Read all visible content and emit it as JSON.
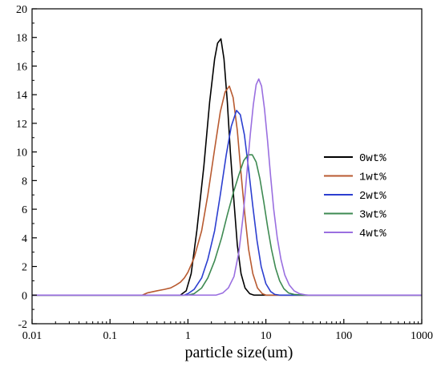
{
  "chart_data": {
    "type": "line",
    "title": "",
    "xlabel": "particle size(um)",
    "ylabel": "",
    "xscale": "log",
    "xlim": [
      0.01,
      1000
    ],
    "ylim": [
      -2,
      20
    ],
    "xticks": [
      {
        "value": 0.01,
        "label": "0.01"
      },
      {
        "value": 0.1,
        "label": "0.1"
      },
      {
        "value": 1,
        "label": "1"
      },
      {
        "value": 10,
        "label": "10"
      },
      {
        "value": 100,
        "label": "100"
      },
      {
        "value": 1000,
        "label": "1000"
      }
    ],
    "yticks": [
      {
        "value": -2,
        "label": "-2"
      },
      {
        "value": 0,
        "label": "0"
      },
      {
        "value": 2,
        "label": "2"
      },
      {
        "value": 4,
        "label": "4"
      },
      {
        "value": 6,
        "label": "6"
      },
      {
        "value": 8,
        "label": "8"
      },
      {
        "value": 10,
        "label": "10"
      },
      {
        "value": 12,
        "label": "12"
      },
      {
        "value": 14,
        "label": "14"
      },
      {
        "value": 16,
        "label": "16"
      },
      {
        "value": 18,
        "label": "18"
      },
      {
        "value": 20,
        "label": "20"
      }
    ],
    "grid": false,
    "legend_position": "right",
    "series": [
      {
        "name": "0wt%",
        "color": "#000000",
        "points": [
          [
            0.01,
            0
          ],
          [
            0.8,
            0
          ],
          [
            0.95,
            0.3
          ],
          [
            1.1,
            1.5
          ],
          [
            1.3,
            4.5
          ],
          [
            1.6,
            9
          ],
          [
            1.9,
            13.5
          ],
          [
            2.2,
            16.5
          ],
          [
            2.4,
            17.6
          ],
          [
            2.65,
            17.9
          ],
          [
            2.9,
            16.5
          ],
          [
            3.2,
            13.5
          ],
          [
            3.5,
            10
          ],
          [
            3.9,
            6.5
          ],
          [
            4.3,
            3.5
          ],
          [
            4.8,
            1.5
          ],
          [
            5.4,
            0.5
          ],
          [
            6.2,
            0.1
          ],
          [
            7,
            0
          ],
          [
            1000,
            0
          ]
        ]
      },
      {
        "name": "1wt%",
        "color": "#b85a30",
        "points": [
          [
            0.01,
            0
          ],
          [
            0.26,
            0
          ],
          [
            0.3,
            0.15
          ],
          [
            0.4,
            0.3
          ],
          [
            0.5,
            0.4
          ],
          [
            0.6,
            0.5
          ],
          [
            0.7,
            0.7
          ],
          [
            0.8,
            0.9
          ],
          [
            0.9,
            1.2
          ],
          [
            1.0,
            1.6
          ],
          [
            1.2,
            2.6
          ],
          [
            1.5,
            4.5
          ],
          [
            1.8,
            7
          ],
          [
            2.2,
            10.2
          ],
          [
            2.6,
            12.8
          ],
          [
            3.0,
            14.2
          ],
          [
            3.4,
            14.6
          ],
          [
            3.8,
            13.8
          ],
          [
            4.3,
            11.5
          ],
          [
            4.8,
            8.5
          ],
          [
            5.4,
            5.5
          ],
          [
            6.0,
            3.2
          ],
          [
            6.8,
            1.5
          ],
          [
            7.8,
            0.5
          ],
          [
            9,
            0.1
          ],
          [
            10,
            0
          ],
          [
            1000,
            0
          ]
        ]
      },
      {
        "name": "2wt%",
        "color": "#2c3fd0",
        "points": [
          [
            0.01,
            0
          ],
          [
            0.9,
            0
          ],
          [
            1.0,
            0.1
          ],
          [
            1.2,
            0.4
          ],
          [
            1.5,
            1.2
          ],
          [
            1.8,
            2.5
          ],
          [
            2.2,
            4.5
          ],
          [
            2.6,
            7
          ],
          [
            3.1,
            9.8
          ],
          [
            3.6,
            11.8
          ],
          [
            4.2,
            12.9
          ],
          [
            4.7,
            12.6
          ],
          [
            5.3,
            11.2
          ],
          [
            6.0,
            8.8
          ],
          [
            6.8,
            6.2
          ],
          [
            7.7,
            3.8
          ],
          [
            8.7,
            2
          ],
          [
            10,
            0.8
          ],
          [
            11.5,
            0.25
          ],
          [
            13,
            0.05
          ],
          [
            15,
            0
          ],
          [
            1000,
            0
          ]
        ]
      },
      {
        "name": "3wt%",
        "color": "#3e8a52",
        "points": [
          [
            0.01,
            0
          ],
          [
            1.0,
            0
          ],
          [
            1.2,
            0.1
          ],
          [
            1.5,
            0.5
          ],
          [
            1.8,
            1.2
          ],
          [
            2.2,
            2.4
          ],
          [
            2.7,
            4
          ],
          [
            3.2,
            5.6
          ],
          [
            3.8,
            7.1
          ],
          [
            4.5,
            8.4
          ],
          [
            5.2,
            9.4
          ],
          [
            5.9,
            9.8
          ],
          [
            6.7,
            9.8
          ],
          [
            7.5,
            9.3
          ],
          [
            8.4,
            8.1
          ],
          [
            9.4,
            6.5
          ],
          [
            10.5,
            4.8
          ],
          [
            11.8,
            3.2
          ],
          [
            13.3,
            1.9
          ],
          [
            15,
            1
          ],
          [
            17,
            0.45
          ],
          [
            19.5,
            0.15
          ],
          [
            23,
            0.05
          ],
          [
            30,
            0
          ],
          [
            1000,
            0
          ]
        ]
      },
      {
        "name": "4wt%",
        "color": "#9a6fe0",
        "points": [
          [
            0.01,
            0
          ],
          [
            2.3,
            0
          ],
          [
            2.8,
            0.15
          ],
          [
            3.3,
            0.5
          ],
          [
            3.9,
            1.3
          ],
          [
            4.5,
            3
          ],
          [
            5.1,
            5.5
          ],
          [
            5.7,
            8.5
          ],
          [
            6.3,
            11.2
          ],
          [
            6.9,
            13.3
          ],
          [
            7.5,
            14.7
          ],
          [
            8.1,
            15.1
          ],
          [
            8.8,
            14.6
          ],
          [
            9.6,
            13
          ],
          [
            10.5,
            10.8
          ],
          [
            11.5,
            8.3
          ],
          [
            12.6,
            6
          ],
          [
            14,
            4
          ],
          [
            15.6,
            2.5
          ],
          [
            17.5,
            1.4
          ],
          [
            20,
            0.7
          ],
          [
            23,
            0.3
          ],
          [
            27,
            0.1
          ],
          [
            32,
            0.02
          ],
          [
            35,
            0
          ],
          [
            1000,
            0
          ]
        ]
      }
    ]
  }
}
